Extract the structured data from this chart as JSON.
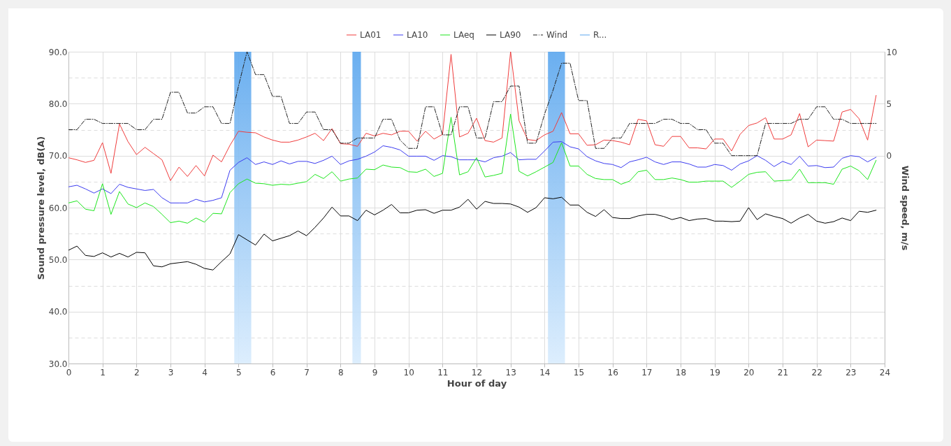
{
  "chart_data": {
    "type": "line",
    "xlabel": "Hour of day",
    "ylabel": "Sound pressure level, dB(A)",
    "y2label": "Wind speed, m/s",
    "x": [
      0,
      0.25,
      0.5,
      0.75,
      1,
      1.25,
      1.5,
      1.75,
      2,
      2.25,
      2.5,
      2.75,
      3,
      3.25,
      3.5,
      3.75,
      4,
      4.25,
      4.5,
      4.75,
      5,
      5.25,
      5.5,
      5.75,
      6,
      6.25,
      6.5,
      6.75,
      7,
      7.25,
      7.5,
      7.75,
      8,
      8.25,
      8.5,
      8.75,
      9,
      9.25,
      9.5,
      9.75,
      10,
      10.25,
      10.5,
      10.75,
      11,
      11.25,
      11.5,
      11.75,
      12,
      12.25,
      12.5,
      12.75,
      13,
      13.25,
      13.5,
      13.75,
      14,
      14.25,
      14.5,
      14.75,
      15,
      15.25,
      15.5,
      15.75,
      16,
      16.25,
      16.5,
      16.75,
      17,
      17.25,
      17.5,
      17.75,
      18,
      18.25,
      18.5,
      18.75,
      19,
      19.25,
      19.5,
      19.75,
      20,
      20.25,
      20.5,
      20.75,
      21,
      21.25,
      21.5,
      21.75,
      22,
      22.25,
      22.5,
      22.75,
      23,
      23.25,
      23.5,
      23.75
    ],
    "series": [
      {
        "name": "LA01",
        "color": "#f03c3c",
        "values": [
          69.6,
          69.2,
          68.7,
          69.1,
          72.5,
          66.6,
          76.1,
          72.7,
          70.2,
          71.6,
          70.4,
          69.2,
          65.2,
          67.8,
          66.0,
          68.1,
          66.1,
          70.1,
          68.8,
          72.0,
          74.7,
          74.5,
          74.4,
          73.6,
          73.0,
          72.6,
          72.6,
          73.0,
          73.6,
          74.3,
          72.9,
          75.2,
          72.3,
          72.2,
          71.8,
          74.3,
          73.8,
          74.3,
          74.0,
          74.7,
          74.7,
          72.8,
          74.7,
          73.2,
          74.1,
          89.5,
          73.6,
          74.3,
          77.2,
          72.9,
          72.6,
          73.4,
          90.0,
          76.7,
          73.1,
          72.9,
          74.0,
          74.7,
          78.3,
          74.2,
          74.2,
          72.0,
          72.1,
          73.0,
          72.9,
          72.6,
          72.1,
          77.0,
          76.7,
          72.1,
          71.8,
          73.7,
          73.7,
          71.5,
          71.5,
          71.3,
          73.2,
          73.2,
          70.9,
          74.1,
          75.8,
          76.3,
          77.3,
          73.2,
          73.2,
          74.0,
          78.1,
          71.7,
          73.0,
          72.9,
          72.8,
          78.4,
          78.9,
          77.1,
          73.0,
          81.6
        ]
      },
      {
        "name": "LA10",
        "color": "#3c3cf0",
        "values": [
          64.0,
          64.3,
          63.6,
          62.8,
          63.6,
          62.7,
          64.5,
          63.9,
          63.6,
          63.3,
          63.5,
          61.9,
          60.9,
          60.9,
          60.9,
          61.6,
          61.1,
          61.4,
          61.9,
          67.2,
          68.7,
          69.6,
          68.3,
          68.8,
          68.3,
          69.0,
          68.4,
          68.9,
          68.9,
          68.5,
          69.1,
          69.9,
          68.3,
          69.0,
          69.3,
          69.9,
          70.7,
          71.9,
          71.6,
          71.1,
          69.9,
          69.9,
          69.9,
          69.1,
          70.0,
          69.8,
          69.2,
          69.2,
          69.2,
          68.8,
          69.6,
          69.9,
          70.6,
          69.2,
          69.3,
          69.3,
          70.9,
          72.6,
          72.7,
          71.7,
          71.3,
          69.8,
          69.0,
          68.5,
          68.3,
          67.7,
          68.8,
          69.2,
          69.7,
          68.8,
          68.3,
          68.8,
          68.8,
          68.4,
          67.8,
          67.8,
          68.3,
          68.1,
          67.2,
          68.4,
          69.0,
          70.0,
          69.1,
          67.9,
          68.9,
          68.3,
          69.9,
          68.0,
          68.1,
          67.7,
          67.8,
          69.5,
          70.0,
          69.8,
          68.8,
          69.7
        ]
      },
      {
        "name": "LAeq",
        "color": "#1ee61e",
        "values": [
          60.9,
          61.3,
          59.7,
          59.4,
          64.6,
          58.7,
          63.1,
          60.7,
          60.0,
          60.9,
          60.2,
          58.7,
          57.1,
          57.4,
          57.0,
          58.0,
          57.2,
          58.9,
          58.8,
          62.9,
          64.6,
          65.5,
          64.7,
          64.6,
          64.3,
          64.5,
          64.4,
          64.7,
          65.0,
          66.4,
          65.6,
          66.9,
          65.1,
          65.5,
          65.7,
          67.4,
          67.3,
          68.2,
          67.8,
          67.7,
          66.9,
          66.8,
          67.4,
          66.0,
          66.6,
          77.4,
          66.3,
          66.9,
          69.6,
          65.9,
          66.2,
          66.6,
          78.0,
          67.0,
          66.1,
          66.9,
          67.8,
          68.7,
          72.5,
          68.0,
          68.0,
          66.4,
          65.6,
          65.4,
          65.4,
          64.5,
          65.1,
          66.9,
          67.2,
          65.4,
          65.4,
          65.7,
          65.4,
          64.9,
          64.9,
          65.1,
          65.1,
          65.1,
          63.9,
          65.1,
          66.4,
          66.8,
          66.9,
          65.1,
          65.2,
          65.3,
          67.4,
          64.8,
          64.8,
          64.8,
          64.5,
          67.4,
          68.0,
          67.1,
          65.4,
          69.1
        ]
      },
      {
        "name": "LA90",
        "color": "#000000",
        "values": [
          51.8,
          52.6,
          50.8,
          50.6,
          51.3,
          50.5,
          51.2,
          50.5,
          51.4,
          51.3,
          48.8,
          48.6,
          49.2,
          49.4,
          49.6,
          49.1,
          48.3,
          48.0,
          49.6,
          51.1,
          54.8,
          53.8,
          52.8,
          54.9,
          53.6,
          54.1,
          54.6,
          55.5,
          54.6,
          56.2,
          58.0,
          60.1,
          58.4,
          58.4,
          57.5,
          59.5,
          58.6,
          59.5,
          60.6,
          59.0,
          59.0,
          59.5,
          59.6,
          58.9,
          59.5,
          59.5,
          60.1,
          61.6,
          59.7,
          61.2,
          60.8,
          60.8,
          60.7,
          60.1,
          59.1,
          60.0,
          61.9,
          61.7,
          62.0,
          60.5,
          60.5,
          59.1,
          58.3,
          59.6,
          58.1,
          57.9,
          57.9,
          58.4,
          58.7,
          58.7,
          58.3,
          57.7,
          58.1,
          57.5,
          57.8,
          57.9,
          57.4,
          57.4,
          57.3,
          57.4,
          60.0,
          57.7,
          58.8,
          58.3,
          57.9,
          57.0,
          58.0,
          58.7,
          57.4,
          57.0,
          57.3,
          58.0,
          57.5,
          59.3,
          59.1,
          59.5
        ]
      },
      {
        "name": "Wind",
        "color": "#222222",
        "axis": "y2",
        "line_style": "dashed",
        "values": [
          2.5,
          2.5,
          3.5,
          3.5,
          3.1,
          3.1,
          3.1,
          3.1,
          2.5,
          2.5,
          3.5,
          3.5,
          6.1,
          6.1,
          4.1,
          4.1,
          4.7,
          4.7,
          3.1,
          3.1,
          6.7,
          10.0,
          7.8,
          7.8,
          5.7,
          5.7,
          3.1,
          3.1,
          4.2,
          4.2,
          2.5,
          2.5,
          1.2,
          1.2,
          1.7,
          1.7,
          1.7,
          3.5,
          3.5,
          1.5,
          0.7,
          0.7,
          4.7,
          4.7,
          2.0,
          2.0,
          4.7,
          4.7,
          1.7,
          1.7,
          5.2,
          5.2,
          6.7,
          6.7,
          1.2,
          1.2,
          4.0,
          6.3,
          8.9,
          8.9,
          5.3,
          5.3,
          0.7,
          0.7,
          1.7,
          1.7,
          3.1,
          3.1,
          3.1,
          3.1,
          3.5,
          3.5,
          3.1,
          3.1,
          2.5,
          2.5,
          1.2,
          1.2,
          0.0,
          0.0,
          0.0,
          0.0,
          3.1,
          3.1,
          3.1,
          3.1,
          3.5,
          3.5,
          4.7,
          4.7,
          3.5,
          3.5,
          3.1,
          3.1,
          3.1,
          3.1
        ]
      }
    ],
    "bands": [
      {
        "axis": "x",
        "from": 4.875,
        "to": 5.375,
        "label": "R...",
        "color": "#5aa6ee"
      },
      {
        "axis": "x",
        "from": 8.35,
        "to": 8.6,
        "color": "#5aa6ee"
      },
      {
        "axis": "x",
        "from": 14.1,
        "to": 14.6,
        "color": "#5aa6ee"
      }
    ],
    "xlim": [
      0,
      24
    ],
    "xticks": [
      0,
      1,
      2,
      3,
      4,
      5,
      6,
      7,
      8,
      9,
      10,
      11,
      12,
      13,
      14,
      15,
      16,
      17,
      18,
      19,
      20,
      21,
      22,
      23,
      24
    ],
    "ylim": [
      30,
      90
    ],
    "yticks": [
      {
        "value": 30,
        "label": "30.0"
      },
      {
        "value": 35,
        "label": null
      },
      {
        "value": 40,
        "label": "40.0"
      },
      {
        "value": 45,
        "label": null
      },
      {
        "value": 50,
        "label": "50.0"
      },
      {
        "value": 55,
        "label": null
      },
      {
        "value": 60,
        "label": "60.0"
      },
      {
        "value": 65,
        "label": null
      },
      {
        "value": 70,
        "label": "70.0"
      },
      {
        "value": 75,
        "label": null
      },
      {
        "value": 80,
        "label": "80.0"
      },
      {
        "value": 85,
        "label": null
      },
      {
        "value": 90,
        "label": "90.0"
      }
    ],
    "y2lim": [
      -20,
      10
    ],
    "y2ticks": [
      0,
      5,
      10
    ],
    "grid": true,
    "legend": "top"
  }
}
